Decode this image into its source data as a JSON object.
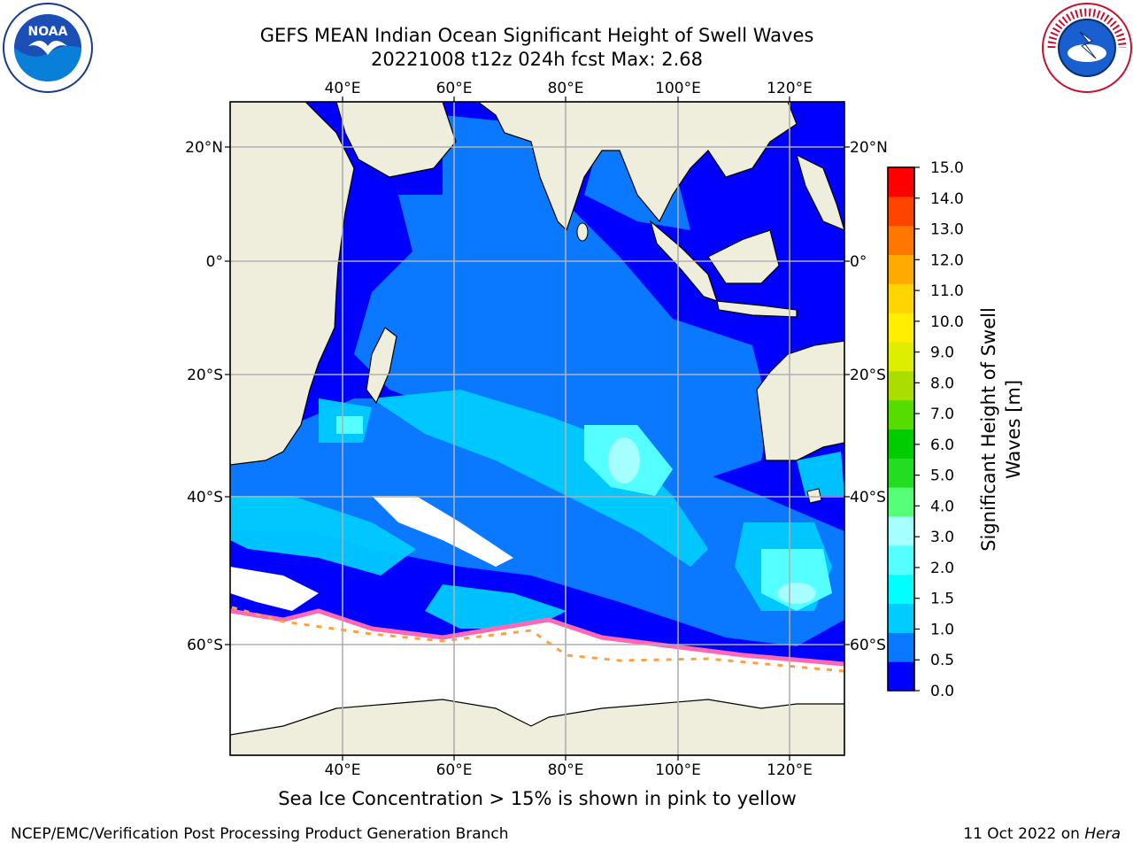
{
  "header": {
    "title_line1": "GEFS MEAN Indian Ocean Significant Height of Swell Waves",
    "title_line2": "20221008 t12z 024h fcst   Max: 2.68"
  },
  "logos": {
    "left": {
      "icon": "noaa-logo-icon",
      "text": "NOAA"
    },
    "right": {
      "icon": "nws-logo-icon",
      "text": "NATIONAL WEATHER SERVICE"
    }
  },
  "map": {
    "lon_ticks_top": [
      "40°E",
      "60°E",
      "80°E",
      "100°E",
      "120°E"
    ],
    "lon_ticks_bottom": [
      "40°E",
      "60°E",
      "80°E",
      "100°E",
      "120°E"
    ],
    "lat_ticks_left": [
      "20°N",
      "0°",
      "20°S",
      "40°S",
      "60°S"
    ],
    "lat_ticks_right": [
      "20°N",
      "0°",
      "20°S",
      "40°S",
      "60°S"
    ],
    "colors": {
      "land": "#efeedd",
      "ice": "#ffffff",
      "gridline": "#b0b0b0",
      "sea_ice_edge": [
        "#ff69b4",
        "#ffa040",
        "#f6c531"
      ]
    }
  },
  "colorbar": {
    "label_line1": "Significant Height of Swell",
    "label_line2": "Waves [m]",
    "tick_labels": [
      "0.0",
      "0.5",
      "1.0",
      "1.5",
      "2.0",
      "3.0",
      "4.0",
      "5.0",
      "6.0",
      "7.0",
      "8.0",
      "9.0",
      "10.0",
      "11.0",
      "12.0",
      "13.0",
      "14.0",
      "15.0"
    ],
    "bin_colors": [
      "#0000ff",
      "#0a78ff",
      "#00ccff",
      "#00ffff",
      "#55ffff",
      "#a5ffff",
      "#55ff77",
      "#22dd22",
      "#00cc00",
      "#55dd00",
      "#aadd00",
      "#ddee00",
      "#ffee00",
      "#ffd400",
      "#ffaa00",
      "#ff7700",
      "#ff4400",
      "#ff0000"
    ]
  },
  "caption": "Sea Ice Concentration > 15% is shown in pink to yellow",
  "footer": {
    "left": "NCEP/EMC/Verification Post Processing Product Generation Branch",
    "right_date": "11 Oct 2022 on ",
    "right_machine": "Hera"
  }
}
